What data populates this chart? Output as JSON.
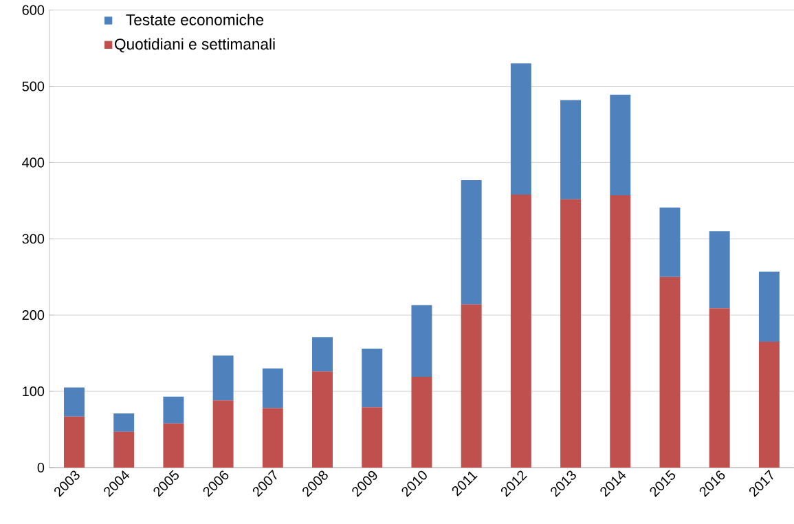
{
  "chart_data": {
    "type": "bar",
    "stacked": true,
    "categories": [
      "2003",
      "2004",
      "2005",
      "2006",
      "2007",
      "2008",
      "2009",
      "2010",
      "2011",
      "2012",
      "2013",
      "2014",
      "2015",
      "2016",
      "2017"
    ],
    "series": [
      {
        "name": "Quotidiani e settimanali",
        "color": "#c0504d",
        "values": [
          67,
          47,
          58,
          88,
          78,
          126,
          79,
          119,
          214,
          358,
          352,
          357,
          250,
          209,
          165
        ]
      },
      {
        "name": "Testate economiche",
        "color": "#4f81bd",
        "values": [
          38,
          24,
          35,
          59,
          52,
          45,
          77,
          94,
          163,
          172,
          130,
          132,
          91,
          101,
          92
        ]
      }
    ],
    "ylim": [
      0,
      600
    ],
    "yticks": [
      0,
      100,
      200,
      300,
      400,
      500,
      600
    ],
    "grid": "y",
    "legend": "top left"
  }
}
